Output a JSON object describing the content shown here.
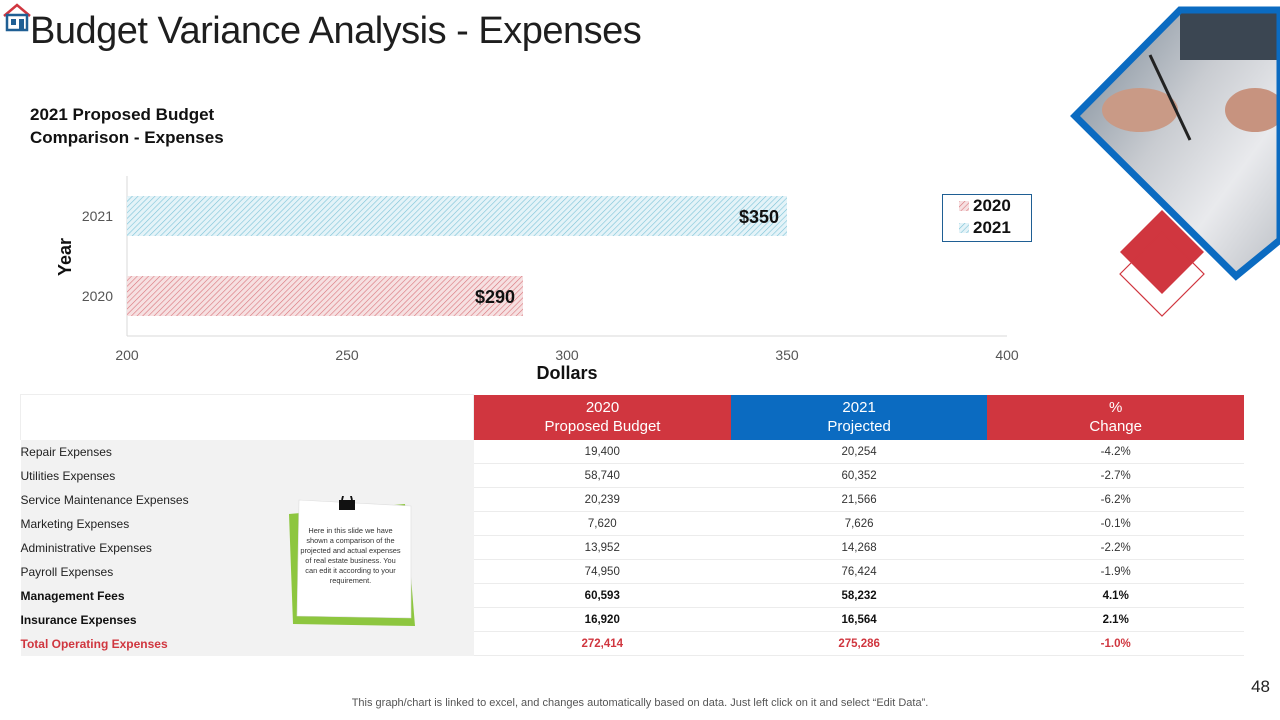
{
  "slide": {
    "title": "Budget Variance Analysis - Expenses",
    "subtitle_line1": "2021 Proposed Budget",
    "subtitle_line2": "Comparison - Expenses",
    "page_number": "48",
    "footnote": "This graph/chart is linked to excel, and changes automatically based on data. Just left click on it and select “Edit Data”.",
    "note_text": "Here in this slide we have shown a comparison of the projected and actual expenses of real estate business. You can edit it according to your requirement."
  },
  "chart_data": {
    "type": "bar",
    "orientation": "horizontal",
    "categories": [
      "2021",
      "2020"
    ],
    "values": [
      350,
      290
    ],
    "data_labels": [
      "$350",
      "$290"
    ],
    "xlabel": "Dollars",
    "ylabel": "Year",
    "xlim": [
      200,
      400
    ],
    "x_ticks": [
      "200",
      "250",
      "300",
      "350",
      "400"
    ],
    "legend": [
      "2020",
      "2021"
    ],
    "legend_position": "right",
    "colors": {
      "2020": "#d9747b",
      "2021": "#7cc3d8"
    },
    "grid": false
  },
  "table": {
    "headers": [
      {
        "line1": "2020",
        "line2": "Proposed Budget"
      },
      {
        "line1": "2021",
        "line2": "Projected"
      },
      {
        "line1": "%",
        "line2": "Change"
      }
    ],
    "rows": [
      {
        "label": "Repair Expenses",
        "b2020": "19,400",
        "p2021": "20,254",
        "change": "-4.2%",
        "style": "normal"
      },
      {
        "label": "Utilities Expenses",
        "b2020": "58,740",
        "p2021": "60,352",
        "change": "-2.7%",
        "style": "normal"
      },
      {
        "label": "Service Maintenance Expenses",
        "b2020": "20,239",
        "p2021": "21,566",
        "change": "-6.2%",
        "style": "normal"
      },
      {
        "label": "Marketing Expenses",
        "b2020": "7,620",
        "p2021": "7,626",
        "change": "-0.1%",
        "style": "normal"
      },
      {
        "label": "Administrative Expenses",
        "b2020": "13,952",
        "p2021": "14,268",
        "change": "-2.2%",
        "style": "normal"
      },
      {
        "label": "Payroll Expenses",
        "b2020": "74,950",
        "p2021": "76,424",
        "change": "-1.9%",
        "style": "normal"
      },
      {
        "label": "Management Fees",
        "b2020": "60,593",
        "p2021": "58,232",
        "change": "4.1%",
        "style": "bold"
      },
      {
        "label": "Insurance Expenses",
        "b2020": "16,920",
        "p2021": "16,564",
        "change": "2.1%",
        "style": "bold"
      },
      {
        "label": "Total Operating Expenses",
        "b2020": "272,414",
        "p2021": "275,286",
        "change": "-1.0%",
        "style": "total"
      }
    ]
  },
  "colors": {
    "accent_red": "#d0363f",
    "accent_blue": "#0b6bc1",
    "note_green": "#8dc63f"
  }
}
